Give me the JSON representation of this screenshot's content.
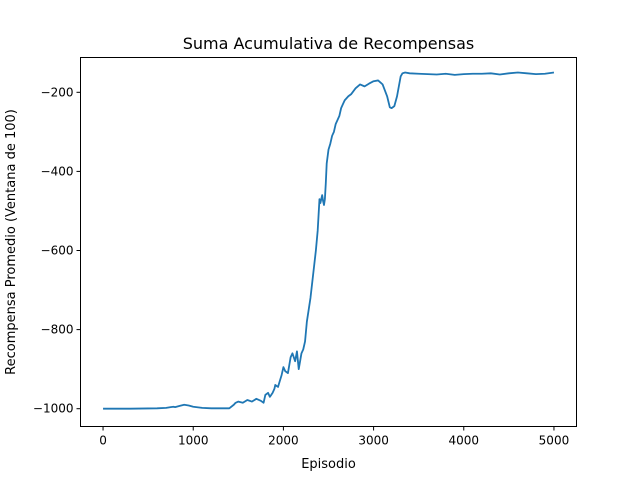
{
  "chart_data": {
    "type": "line",
    "title": "Suma Acumulativa de Recompensas",
    "xlabel": "Episodio",
    "ylabel": "Recompensa Promedio (Ventana de 100)",
    "xlim": [
      -250,
      5250
    ],
    "ylim": [
      -1045,
      -112
    ],
    "xticks": [
      0,
      1000,
      2000,
      3000,
      4000,
      5000
    ],
    "yticks": [
      -1000,
      -800,
      -600,
      -400,
      -200
    ],
    "grid": false,
    "series_color": "#1f77b4",
    "series": [
      {
        "x": [
          0,
          300,
          600,
          700,
          750,
          780,
          800,
          850,
          900,
          950,
          1000,
          1100,
          1200,
          1300,
          1400,
          1450,
          1470,
          1500,
          1550,
          1600,
          1650,
          1700,
          1750,
          1780,
          1800,
          1830,
          1850,
          1880,
          1900,
          1910,
          1940,
          1960,
          1980,
          2000,
          2020,
          2050,
          2080,
          2100,
          2130,
          2150,
          2170,
          2200,
          2220,
          2240,
          2260,
          2280,
          2300,
          2320,
          2340,
          2360,
          2380,
          2390,
          2400,
          2410,
          2430,
          2440,
          2450,
          2460,
          2470,
          2480,
          2500,
          2520,
          2540,
          2560,
          2580,
          2600,
          2620,
          2640,
          2660,
          2680,
          2700,
          2720,
          2750,
          2800,
          2850,
          2900,
          2950,
          3000,
          3050,
          3100,
          3150,
          3180,
          3200,
          3230,
          3260,
          3280,
          3300,
          3320,
          3350,
          3400,
          3500,
          3600,
          3700,
          3800,
          3900,
          4000,
          4100,
          4200,
          4300,
          4400,
          4500,
          4600,
          4700,
          4800,
          4900,
          5000
        ],
        "y": [
          -1000,
          -1000,
          -999,
          -998,
          -996,
          -995,
          -996,
          -993,
          -990,
          -992,
          -995,
          -998,
          -999,
          -999,
          -999,
          -990,
          -985,
          -982,
          -985,
          -978,
          -982,
          -975,
          -980,
          -985,
          -965,
          -960,
          -970,
          -960,
          -950,
          -940,
          -945,
          -930,
          -915,
          -895,
          -905,
          -910,
          -870,
          -860,
          -880,
          -855,
          -900,
          -860,
          -850,
          -830,
          -780,
          -750,
          -720,
          -680,
          -640,
          -600,
          -550,
          -510,
          -470,
          -480,
          -460,
          -475,
          -485,
          -470,
          -430,
          -380,
          -345,
          -330,
          -310,
          -300,
          -280,
          -270,
          -260,
          -240,
          -230,
          -220,
          -215,
          -210,
          -205,
          -190,
          -180,
          -185,
          -178,
          -172,
          -170,
          -180,
          -210,
          -238,
          -240,
          -235,
          -210,
          -185,
          -160,
          -152,
          -150,
          -152,
          -153,
          -154,
          -155,
          -153,
          -156,
          -154,
          -153,
          -153,
          -152,
          -155,
          -152,
          -150,
          -152,
          -154,
          -153,
          -150
        ]
      }
    ]
  }
}
